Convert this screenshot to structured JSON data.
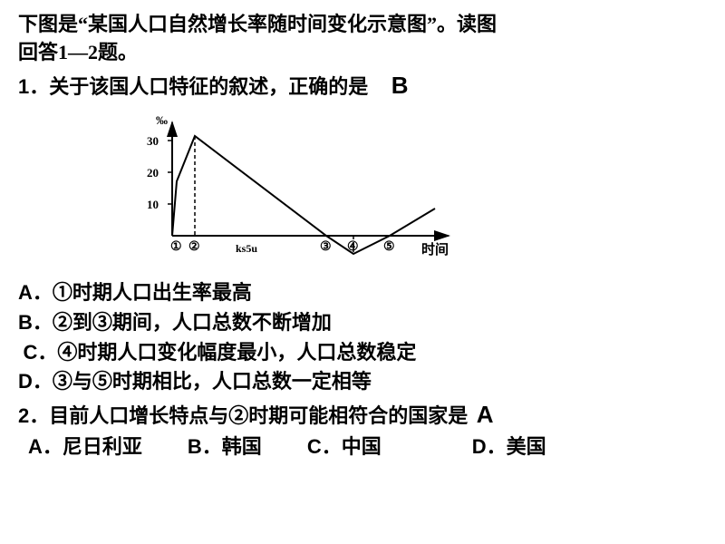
{
  "intro": {
    "line1": "下图是“某国人口自然增长率随时间变化示意图”。读图",
    "line2": "回答1—2题。"
  },
  "q1": {
    "number": "1",
    "text": "．关于该国人口特征的叙述，正确的是",
    "answer": "B",
    "options": {
      "A": "．①时期人口出生率最高",
      "B": "．②到③期间，人口总数不断增加",
      "C": "．④时期人口变化幅度最小，人口总数稳定",
      "D": "．③与⑤时期相比，人口总数一定相等"
    }
  },
  "q2": {
    "number": "2",
    "text": "．目前人口增长特点与②时期可能相符合的国家是",
    "answer": "A",
    "options": {
      "A": "．尼日利亚",
      "B": "．韩国",
      "C": "．中国",
      "D": "．美国"
    }
  },
  "chart": {
    "type": "line",
    "y_label": "‰",
    "y_ticks": [
      "10",
      "20",
      "30"
    ],
    "x_label": "时间",
    "x_markers": [
      "①",
      "②",
      "③",
      "④",
      "⑤"
    ],
    "watermark": "ks5u",
    "curve_points": [
      {
        "x": 50,
        "y": 140
      },
      {
        "x": 55,
        "y": 80
      },
      {
        "x": 75,
        "y": 30
      },
      {
        "x": 220,
        "y": 140
      },
      {
        "x": 250,
        "y": 160
      },
      {
        "x": 290,
        "y": 140
      },
      {
        "x": 340,
        "y": 110
      }
    ],
    "axis_origin": {
      "x": 50,
      "y": 140
    },
    "y_axis_top": 15,
    "x_axis_right": 355,
    "y_tick_positions": [
      {
        "y": 105,
        "label_idx": 0
      },
      {
        "y": 70,
        "label_idx": 1
      },
      {
        "y": 35,
        "label_idx": 2
      }
    ],
    "x_marker_positions": [
      {
        "x": 55,
        "label_idx": 0
      },
      {
        "x": 75,
        "label_idx": 1
      },
      {
        "x": 220,
        "label_idx": 2
      },
      {
        "x": 250,
        "label_idx": 3
      },
      {
        "x": 290,
        "label_idx": 4
      }
    ],
    "dashed_lines": [
      {
        "x": 75,
        "y1": 30,
        "y2": 140
      },
      {
        "x": 250,
        "y1": 140,
        "y2": 160
      }
    ],
    "stroke_color": "#000000",
    "stroke_width": 2
  }
}
